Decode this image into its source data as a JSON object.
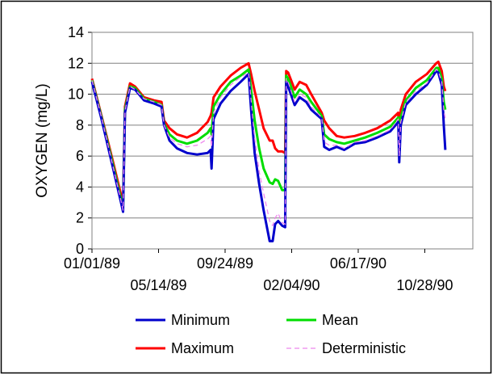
{
  "chart_data": {
    "type": "line",
    "title": "",
    "xlabel": "",
    "ylabel": "OXYGEN (mg/L)",
    "ylim": [
      0,
      14
    ],
    "xlim": [
      "01/01/89",
      "02/01/91"
    ],
    "yticks": [
      "0",
      "2",
      "4",
      "6",
      "8",
      "10",
      "12",
      "14"
    ],
    "xticks_upper": [
      "01/01/89",
      "09/24/89",
      "06/17/90"
    ],
    "xticks_lower": [
      "05/14/89",
      "02/04/90",
      "10/28/90"
    ],
    "grid": true,
    "legend_position": "bottom",
    "series": [
      {
        "name": "Minimum",
        "color": "#0000cc",
        "style": "solid",
        "x": [
          "01/01/89",
          "01/20/89",
          "02/10/89",
          "02/28/89",
          "03/04/89",
          "03/08/89",
          "03/18/89",
          "03/28/89",
          "04/15/89",
          "05/05/89",
          "05/20/89",
          "05/25/89",
          "06/05/89",
          "06/20/89",
          "07/10/89",
          "07/30/89",
          "08/20/89",
          "08/26/89",
          "08/28/89",
          "09/01/89",
          "09/15/89",
          "10/05/89",
          "10/25/89",
          "11/10/89",
          "11/15/89",
          "11/22/89",
          "12/01/89",
          "12/10/89",
          "12/22/89",
          "12/28/89",
          "01/02/90",
          "01/08/90",
          "01/16/90",
          "01/22/90",
          "01/24/90",
          "01/28/90",
          "02/10/90",
          "02/20/90",
          "03/05/90",
          "03/15/90",
          "04/05/90",
          "04/10/90",
          "04/20/90",
          "05/05/90",
          "05/20/90",
          "06/10/90",
          "07/01/90",
          "07/25/90",
          "08/20/90",
          "09/05/90",
          "09/07/90",
          "09/10/90",
          "09/20/90",
          "10/10/90",
          "11/01/90",
          "11/20/90",
          "11/24/90",
          "12/01/90",
          "12/05/90",
          "12/08/90"
        ],
        "y": [
          10.8,
          8.4,
          5.5,
          3.0,
          2.4,
          8.8,
          10.4,
          10.3,
          9.6,
          9.4,
          9.2,
          8.0,
          7.0,
          6.5,
          6.2,
          6.1,
          6.2,
          6.4,
          5.2,
          8.4,
          9.4,
          10.2,
          10.8,
          11.3,
          9.0,
          6.2,
          4.2,
          2.5,
          0.5,
          0.5,
          1.6,
          1.8,
          1.5,
          1.4,
          10.8,
          10.5,
          9.3,
          9.8,
          9.5,
          9.0,
          8.4,
          6.6,
          6.4,
          6.6,
          6.4,
          6.8,
          6.9,
          7.2,
          7.6,
          8.2,
          5.6,
          8.0,
          9.3,
          10.0,
          10.6,
          11.5,
          11.4,
          10.6,
          8.0,
          6.4
        ]
      },
      {
        "name": "Maximum",
        "color": "#ff0000",
        "style": "solid",
        "x": [
          "01/01/89",
          "01/20/89",
          "02/10/89",
          "02/28/89",
          "03/04/89",
          "03/08/89",
          "03/18/89",
          "03/28/89",
          "04/15/89",
          "05/05/89",
          "05/20/89",
          "05/25/89",
          "06/05/89",
          "06/20/89",
          "07/10/89",
          "07/30/89",
          "08/20/89",
          "08/26/89",
          "08/28/89",
          "09/01/89",
          "09/15/89",
          "10/05/89",
          "10/25/89",
          "11/10/89",
          "11/15/89",
          "11/22/89",
          "12/01/89",
          "12/10/89",
          "12/22/89",
          "12/28/89",
          "01/02/90",
          "01/08/90",
          "01/16/90",
          "01/22/90",
          "01/24/90",
          "01/28/90",
          "02/10/90",
          "02/20/90",
          "03/05/90",
          "03/15/90",
          "04/05/90",
          "04/10/90",
          "04/20/90",
          "05/05/90",
          "05/20/90",
          "06/10/90",
          "07/01/90",
          "07/25/90",
          "08/20/90",
          "09/05/90",
          "09/07/90",
          "09/10/90",
          "09/20/90",
          "10/10/90",
          "11/01/90",
          "11/20/90",
          "11/24/90",
          "12/01/90",
          "12/05/90",
          "12/08/90"
        ],
        "y": [
          11.0,
          8.6,
          5.9,
          3.5,
          2.9,
          9.2,
          10.7,
          10.5,
          9.8,
          9.6,
          9.5,
          8.3,
          7.8,
          7.4,
          7.2,
          7.5,
          8.2,
          8.6,
          8.8,
          9.8,
          10.5,
          11.2,
          11.7,
          12.0,
          11.3,
          10.2,
          9.0,
          7.8,
          7.0,
          7.0,
          6.5,
          6.3,
          6.3,
          6.2,
          11.5,
          11.4,
          10.3,
          10.8,
          10.6,
          10.0,
          8.8,
          8.3,
          7.8,
          7.3,
          7.2,
          7.3,
          7.5,
          7.8,
          8.3,
          8.8,
          7.3,
          9.0,
          10.0,
          10.8,
          11.3,
          12.0,
          12.1,
          11.5,
          10.5,
          10.2
        ]
      },
      {
        "name": "Mean",
        "color": "#00dd00",
        "style": "solid",
        "x": [
          "01/01/89",
          "01/20/89",
          "02/10/89",
          "02/28/89",
          "03/04/89",
          "03/08/89",
          "03/18/89",
          "03/28/89",
          "04/15/89",
          "05/05/89",
          "05/20/89",
          "05/25/89",
          "06/05/89",
          "06/20/89",
          "07/10/89",
          "07/30/89",
          "08/20/89",
          "08/26/89",
          "08/28/89",
          "09/01/89",
          "09/15/89",
          "10/05/89",
          "10/25/89",
          "11/10/89",
          "11/15/89",
          "11/22/89",
          "12/01/89",
          "12/10/89",
          "12/22/89",
          "12/28/89",
          "01/02/90",
          "01/08/90",
          "01/16/90",
          "01/22/90",
          "01/24/90",
          "01/28/90",
          "02/10/90",
          "02/20/90",
          "03/05/90",
          "03/15/90",
          "04/05/90",
          "04/10/90",
          "04/20/90",
          "05/05/90",
          "05/20/90",
          "06/10/90",
          "07/01/90",
          "07/25/90",
          "08/20/90",
          "09/05/90",
          "09/07/90",
          "09/10/90",
          "09/20/90",
          "10/10/90",
          "11/01/90",
          "11/20/90",
          "11/24/90",
          "12/01/90",
          "12/05/90",
          "12/08/90"
        ],
        "y": [
          10.9,
          8.5,
          5.7,
          3.2,
          2.6,
          9.0,
          10.5,
          10.4,
          9.7,
          9.5,
          9.3,
          8.1,
          7.4,
          7.0,
          6.8,
          7.0,
          7.5,
          7.8,
          7.4,
          9.2,
          10.0,
          10.8,
          11.2,
          11.6,
          10.3,
          8.3,
          6.5,
          5.2,
          4.3,
          4.2,
          4.5,
          4.4,
          3.8,
          3.8,
          11.2,
          11.0,
          9.8,
          10.3,
          10.0,
          9.5,
          8.6,
          7.4,
          7.1,
          6.9,
          6.8,
          7.0,
          7.2,
          7.5,
          7.9,
          8.5,
          6.4,
          8.5,
          9.6,
          10.4,
          10.9,
          11.7,
          11.7,
          11.0,
          9.5,
          9.0
        ]
      },
      {
        "name": "Deterministic",
        "color": "#ee88ee",
        "style": "dashed",
        "x": [
          "01/01/89",
          "01/20/89",
          "02/10/89",
          "02/28/89",
          "03/04/89",
          "03/08/89",
          "03/18/89",
          "03/28/89",
          "04/15/89",
          "05/05/89",
          "05/20/89",
          "05/25/89",
          "06/05/89",
          "06/20/89",
          "07/10/89",
          "07/30/89",
          "08/20/89",
          "08/26/89",
          "08/28/89",
          "09/01/89",
          "09/15/89",
          "10/05/89",
          "10/25/89",
          "11/10/89",
          "11/15/89",
          "11/22/89",
          "12/01/89",
          "12/10/89",
          "12/22/89",
          "12/28/89",
          "01/02/90",
          "01/08/90",
          "01/16/90",
          "01/22/90",
          "01/24/90",
          "01/28/90",
          "02/10/90",
          "02/20/90",
          "03/05/90",
          "03/15/90",
          "04/05/90",
          "04/10/90",
          "04/20/90",
          "05/05/90",
          "05/20/90",
          "06/10/90",
          "07/01/90",
          "07/25/90",
          "08/20/90",
          "09/05/90",
          "09/07/90",
          "09/10/90",
          "09/20/90",
          "10/10/90",
          "11/01/90",
          "11/20/90",
          "11/24/90",
          "12/01/90",
          "12/05/90",
          "12/08/90"
        ],
        "y": [
          10.9,
          8.5,
          5.6,
          3.1,
          2.5,
          8.9,
          10.5,
          10.3,
          9.7,
          9.5,
          9.3,
          8.0,
          7.2,
          6.8,
          6.6,
          6.7,
          7.1,
          7.3,
          6.6,
          8.8,
          9.8,
          10.6,
          11.1,
          11.4,
          9.6,
          7.2,
          5.0,
          3.6,
          1.8,
          1.5,
          2.0,
          2.3,
          1.7,
          1.6,
          11.0,
          10.8,
          9.5,
          10.0,
          9.8,
          9.2,
          8.5,
          6.9,
          6.7,
          6.7,
          6.5,
          6.9,
          7.0,
          7.3,
          7.7,
          8.4,
          6.0,
          8.2,
          9.5,
          10.2,
          10.7,
          11.6,
          11.5,
          10.8,
          9.0,
          8.4
        ]
      }
    ]
  }
}
